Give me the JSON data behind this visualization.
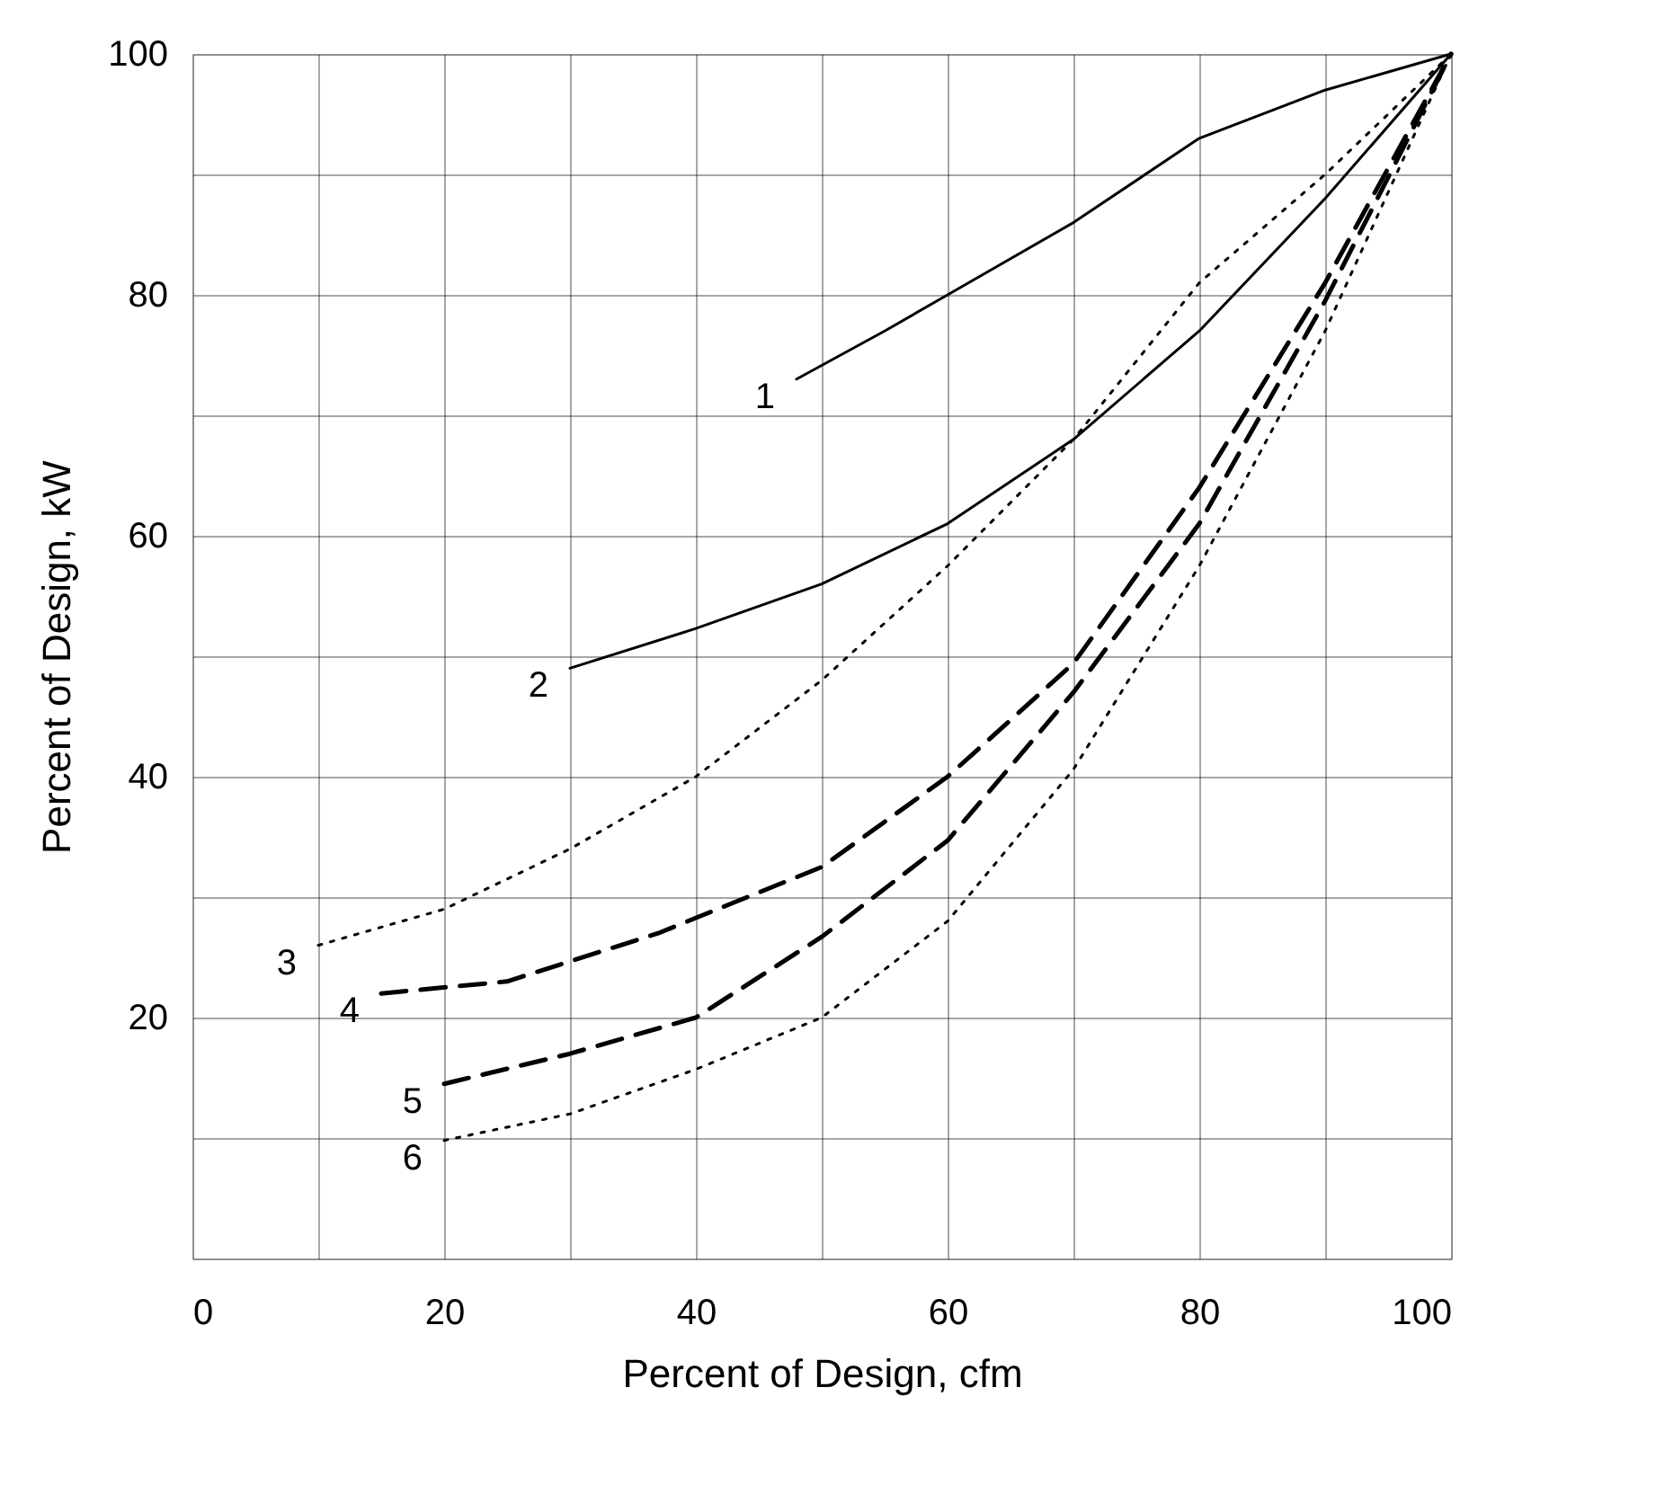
{
  "chart_data": {
    "type": "line",
    "xlabel": "Percent of Design, cfm",
    "ylabel": "Percent of Design, kW",
    "xlim": [
      0,
      100
    ],
    "ylim": [
      0,
      100
    ],
    "xticks": [
      0,
      {
        "value": 10,
        "label": null
      },
      20,
      {
        "value": 30,
        "label": null
      },
      40,
      {
        "value": 50,
        "label": null
      },
      60,
      {
        "value": 70,
        "label": null
      },
      80,
      {
        "value": 90,
        "label": null
      },
      100
    ],
    "yticks": [
      {
        "value": 0,
        "label": null
      },
      {
        "value": 10,
        "label": null
      },
      20,
      {
        "value": 30,
        "label": null
      },
      40,
      {
        "value": 50,
        "label": null
      },
      60,
      {
        "value": 70,
        "label": null
      },
      80,
      {
        "value": 90,
        "label": null
      },
      100
    ],
    "grid": true,
    "legend": false,
    "marker": "none",
    "series": [
      {
        "name": "1",
        "color": "#000000",
        "line_style": "solid",
        "x": [
          48,
          55,
          60,
          70,
          80,
          90,
          100
        ],
        "values": [
          73,
          77,
          80,
          86,
          93,
          97,
          100
        ]
      },
      {
        "name": "2",
        "color": "#000000",
        "line_style": "solid",
        "x": [
          30,
          40,
          50,
          60,
          70,
          80,
          90,
          100
        ],
        "values": [
          49,
          52.3,
          56,
          61,
          68,
          77,
          88,
          100
        ]
      },
      {
        "name": "3",
        "color": "#000000",
        "line_style": "dotted",
        "x": [
          10,
          20,
          30,
          40,
          50,
          60,
          70,
          80,
          90,
          100
        ],
        "values": [
          26,
          29,
          34,
          40,
          48,
          57.5,
          68,
          81,
          90,
          100
        ]
      },
      {
        "name": "4",
        "color": "#000000",
        "line_style": "dashed",
        "x": [
          15,
          25,
          37,
          50,
          60,
          70,
          80,
          90,
          100
        ],
        "values": [
          22,
          23,
          27,
          32.5,
          40,
          49.4,
          64,
          81,
          100
        ]
      },
      {
        "name": "5",
        "color": "#000000",
        "line_style": "dashed",
        "x": [
          20,
          30,
          40,
          50,
          60,
          70,
          80,
          90,
          100
        ],
        "values": [
          14.5,
          17,
          20,
          26.7,
          34.7,
          47,
          61,
          79.5,
          100
        ]
      },
      {
        "name": "6",
        "color": "#000000",
        "line_style": "dotted",
        "x": [
          20,
          30,
          40,
          50,
          60,
          70,
          80,
          90,
          100
        ],
        "values": [
          9.8,
          12,
          15.7,
          20,
          28,
          40.6,
          57.5,
          77,
          100
        ]
      }
    ]
  }
}
